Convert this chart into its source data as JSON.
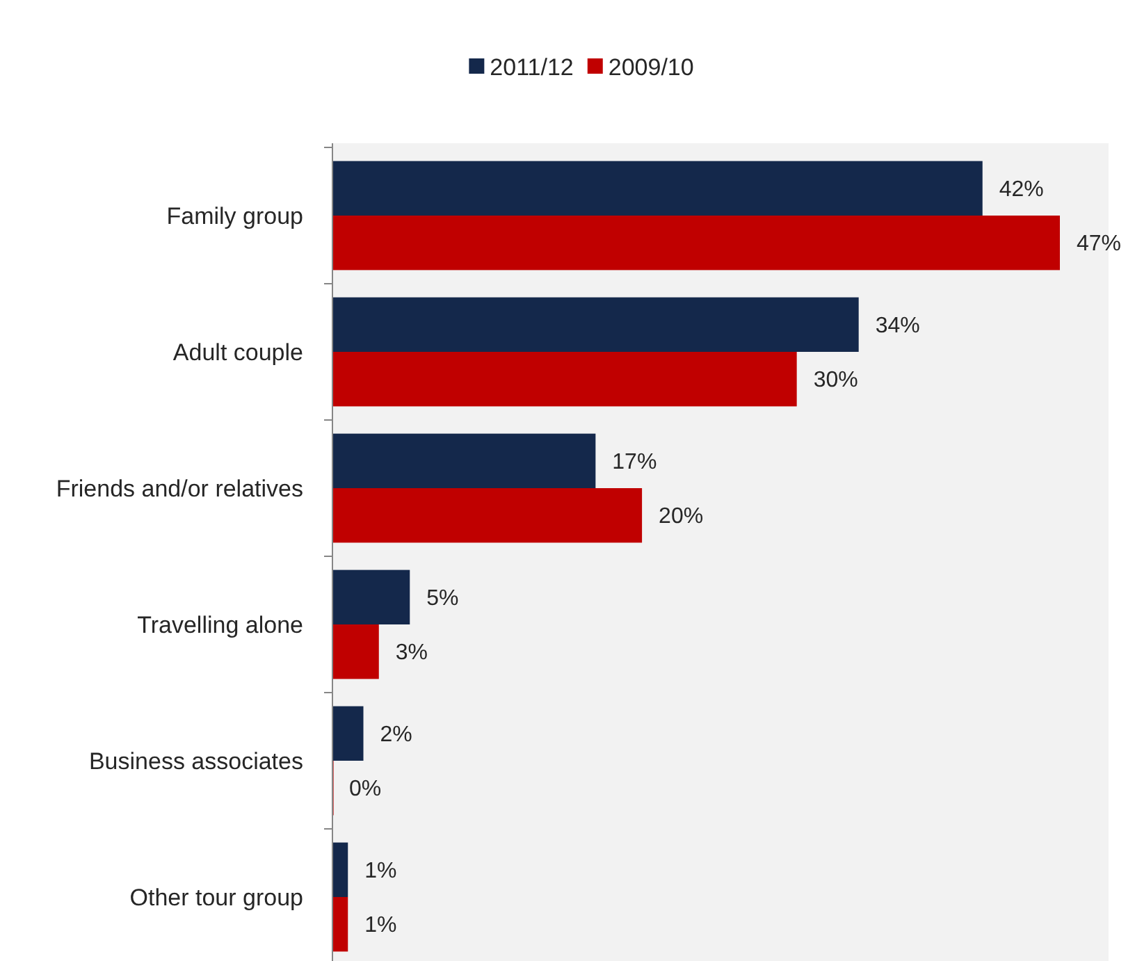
{
  "chart_data": {
    "type": "bar",
    "orientation": "horizontal",
    "categories": [
      "Family group",
      "Adult couple",
      "Friends and/or relatives",
      "Travelling alone",
      "Business associates",
      "Other tour group"
    ],
    "series": [
      {
        "name": "2011/12",
        "color": "#14284b",
        "values": [
          42,
          34,
          17,
          5,
          2,
          1
        ],
        "value_labels": [
          "42%",
          "34%",
          "17%",
          "5%",
          "2%",
          "1%"
        ]
      },
      {
        "name": "2009/10",
        "color": "#c00000",
        "values": [
          47,
          30,
          20,
          3,
          0,
          1
        ],
        "value_labels": [
          "47%",
          "30%",
          "20%",
          "3%",
          "0%",
          "1%"
        ]
      }
    ],
    "legend": "top"
  }
}
